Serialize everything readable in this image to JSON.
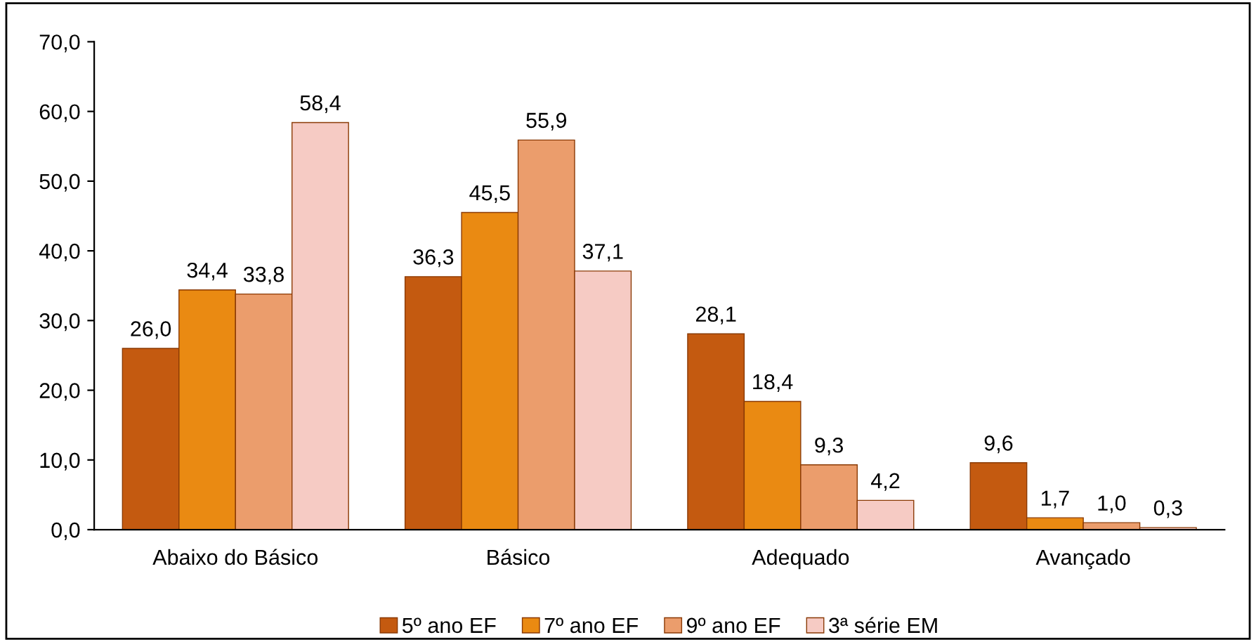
{
  "chart_data": {
    "type": "bar",
    "categories": [
      "Abaixo do Básico",
      "Básico",
      "Adequado",
      "Avançado"
    ],
    "series": [
      {
        "name": "5º ano EF",
        "color": "#c45a10",
        "values": [
          26.0,
          36.3,
          28.1,
          9.6
        ],
        "value_labels": [
          "26,0",
          "36,3",
          "28,1",
          "9,6"
        ]
      },
      {
        "name": "7º ano EF",
        "color": "#ea8a12",
        "values": [
          34.4,
          45.5,
          18.4,
          1.7
        ],
        "value_labels": [
          "34,4",
          "45,5",
          "18,4",
          "1,7"
        ]
      },
      {
        "name": "9º ano EF",
        "color": "#eb9d6c",
        "values": [
          33.8,
          55.9,
          9.3,
          1.0
        ],
        "value_labels": [
          "33,8",
          "55,9",
          "9,3",
          "1,0"
        ]
      },
      {
        "name": "3ª série EM",
        "color": "#f6cbc4",
        "values": [
          58.4,
          37.1,
          4.2,
          0.3
        ],
        "value_labels": [
          "58,4",
          "37,1",
          "4,2",
          "0,3"
        ]
      }
    ],
    "ylim": [
      0,
      70
    ],
    "yticks": [
      {
        "value": 0,
        "label": "0,0"
      },
      {
        "value": 10,
        "label": "10,0"
      },
      {
        "value": 20,
        "label": "20,0"
      },
      {
        "value": 30,
        "label": "30,0"
      },
      {
        "value": 40,
        "label": "40,0"
      },
      {
        "value": 50,
        "label": "50,0"
      },
      {
        "value": 60,
        "label": "60,0"
      },
      {
        "value": 70,
        "label": "70,0"
      }
    ],
    "grid": false,
    "legend": "bottom"
  }
}
